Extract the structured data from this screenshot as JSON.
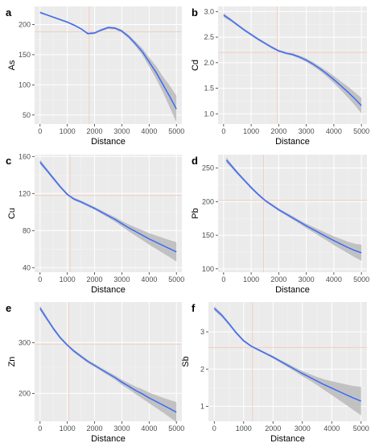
{
  "chart_data": [
    {
      "panel": "a",
      "type": "line",
      "xlabel": "Distance",
      "ylabel": "As",
      "xlim": [
        -200,
        5200
      ],
      "ylim": [
        35,
        230
      ],
      "xticks": [
        0,
        1000,
        2000,
        3000,
        4000,
        5000
      ],
      "yticks": [
        50,
        100,
        150,
        200
      ],
      "ref_x": 1800,
      "ref_y": 188,
      "line_color": "#3366ff",
      "band_color": "#bdbdbd",
      "ref_color": "#f4cfc0",
      "x": [
        0,
        250,
        500,
        750,
        1000,
        1250,
        1500,
        1750,
        2000,
        2250,
        2500,
        2750,
        3000,
        3250,
        3500,
        3750,
        4000,
        4250,
        4500,
        4750,
        5000
      ],
      "y": [
        220,
        216,
        212,
        208,
        204,
        199,
        193,
        185,
        186,
        191,
        195,
        194,
        189,
        180,
        168,
        155,
        138,
        121,
        101,
        81,
        60
      ],
      "lo": [
        218,
        214.5,
        210.5,
        206.5,
        202.5,
        197.5,
        191.5,
        183,
        184,
        189,
        193,
        192,
        186.5,
        177,
        164,
        149.5,
        130.5,
        110.5,
        88,
        63,
        38
      ],
      "hi": [
        222,
        217.5,
        213.5,
        209.5,
        205.5,
        200.5,
        194.5,
        187,
        188,
        193,
        197,
        196,
        191.5,
        183,
        172,
        160.5,
        145.5,
        131.5,
        114,
        99,
        82
      ]
    },
    {
      "panel": "b",
      "type": "line",
      "xlabel": "Distance",
      "ylabel": "Cd",
      "xlim": [
        -200,
        5200
      ],
      "ylim": [
        0.8,
        3.1
      ],
      "xticks": [
        0,
        1000,
        2000,
        3000,
        4000,
        5000
      ],
      "yticks": [
        1.0,
        1.5,
        2.0,
        2.5,
        3.0
      ],
      "ref_x": 1950,
      "ref_y": 2.2,
      "line_color": "#3366ff",
      "band_color": "#bdbdbd",
      "ref_color": "#f4cfc0",
      "x": [
        0,
        250,
        500,
        750,
        1000,
        1250,
        1500,
        1750,
        2000,
        2250,
        2500,
        2750,
        3000,
        3250,
        3500,
        3750,
        4000,
        4250,
        4500,
        4750,
        5000
      ],
      "y": [
        2.93,
        2.84,
        2.74,
        2.64,
        2.55,
        2.46,
        2.38,
        2.3,
        2.23,
        2.19,
        2.16,
        2.11,
        2.05,
        1.97,
        1.88,
        1.78,
        1.67,
        1.55,
        1.43,
        1.3,
        1.16
      ],
      "lo": [
        2.89,
        2.81,
        2.715,
        2.615,
        2.525,
        2.435,
        2.355,
        2.275,
        2.205,
        2.165,
        2.135,
        2.08,
        2.015,
        1.93,
        1.835,
        1.725,
        1.6,
        1.465,
        1.325,
        1.175,
        1.01
      ],
      "hi": [
        2.97,
        2.87,
        2.765,
        2.665,
        2.575,
        2.485,
        2.405,
        2.325,
        2.255,
        2.215,
        2.185,
        2.14,
        2.085,
        2.01,
        1.925,
        1.835,
        1.74,
        1.635,
        1.535,
        1.425,
        1.31
      ]
    },
    {
      "panel": "c",
      "type": "line",
      "xlabel": "Distance",
      "ylabel": "Cu",
      "xlim": [
        -200,
        5200
      ],
      "ylim": [
        35,
        162
      ],
      "xticks": [
        0,
        1000,
        2000,
        3000,
        4000,
        5000
      ],
      "yticks": [
        40,
        80,
        120,
        160
      ],
      "ref_x": 1100,
      "ref_y": 118,
      "line_color": "#3366ff",
      "band_color": "#bdbdbd",
      "ref_color": "#f4cfc0",
      "x": [
        0,
        250,
        500,
        750,
        1000,
        1250,
        1500,
        1750,
        2000,
        2250,
        2500,
        2750,
        3000,
        3250,
        3500,
        3750,
        4000,
        4250,
        4500,
        4750,
        5000
      ],
      "y": [
        154,
        145,
        136,
        127,
        119,
        114,
        111,
        107.5,
        104,
        100,
        96,
        92,
        87.5,
        83,
        79,
        75,
        71,
        67.5,
        64,
        60.5,
        57
      ],
      "lo": [
        151.5,
        143,
        134,
        125.3,
        117.5,
        112.5,
        109.5,
        106,
        102.4,
        98.2,
        93.9,
        89.5,
        84.5,
        79.3,
        74.5,
        69.7,
        64.8,
        60.3,
        55.8,
        51.3,
        46.5
      ],
      "hi": [
        156.5,
        147,
        138,
        128.7,
        120.5,
        115.5,
        112.5,
        109,
        105.6,
        101.8,
        98.1,
        94.5,
        90.5,
        86.7,
        83.5,
        80.3,
        77.2,
        74.7,
        72.2,
        69.7,
        67.5
      ]
    },
    {
      "panel": "d",
      "type": "line",
      "xlabel": "Distance",
      "ylabel": "Pb",
      "xlim": [
        -200,
        5200
      ],
      "ylim": [
        95,
        270
      ],
      "xticks": [
        0,
        1000,
        2000,
        3000,
        4000,
        5000
      ],
      "yticks": [
        100,
        150,
        200,
        250
      ],
      "ref_x": 1450,
      "ref_y": 202,
      "line_color": "#3366ff",
      "band_color": "#bdbdbd",
      "ref_color": "#f4cfc0",
      "x": [
        100,
        250,
        500,
        750,
        1000,
        1250,
        1500,
        1750,
        2000,
        2250,
        2500,
        2750,
        3000,
        3250,
        3500,
        3750,
        4000,
        4250,
        4500,
        4750,
        5000
      ],
      "y": [
        262,
        255,
        243,
        232,
        221,
        211,
        202,
        195,
        188,
        182,
        176,
        170,
        164,
        158.5,
        153,
        147.5,
        142,
        137,
        132,
        127.5,
        124
      ],
      "lo": [
        258,
        252,
        240.5,
        229.7,
        218.8,
        209,
        200,
        193,
        186,
        179.7,
        173.5,
        167.2,
        160.7,
        154.5,
        148.2,
        142,
        135.5,
        129.5,
        123.5,
        117.5,
        112
      ],
      "hi": [
        266,
        258,
        245.5,
        234.3,
        223.2,
        213,
        204,
        197,
        190,
        184.3,
        178.5,
        172.8,
        167.3,
        162.5,
        157.8,
        153,
        148.5,
        144.5,
        140.5,
        137.5,
        136
      ]
    },
    {
      "panel": "e",
      "type": "line",
      "xlabel": "Distance",
      "ylabel": "Zn",
      "xlim": [
        -200,
        5200
      ],
      "ylim": [
        145,
        380
      ],
      "xticks": [
        0,
        1000,
        2000,
        3000,
        4000,
        5000
      ],
      "yticks": [
        200,
        300
      ],
      "ref_x": 1050,
      "ref_y": 297,
      "line_color": "#3366ff",
      "band_color": "#bdbdbd",
      "ref_color": "#f4cfc0",
      "x": [
        0,
        250,
        500,
        750,
        1000,
        1250,
        1500,
        1750,
        2000,
        2250,
        2500,
        2750,
        3000,
        3250,
        3500,
        3750,
        4000,
        4250,
        4500,
        4750,
        5000
      ],
      "y": [
        368,
        347,
        327,
        309,
        295,
        283,
        273,
        263,
        255,
        247,
        239,
        231,
        222,
        214,
        206,
        199,
        191,
        184,
        177,
        170,
        163
      ],
      "lo": [
        363,
        343,
        323.5,
        306,
        292,
        280,
        270,
        260,
        252,
        243.8,
        235.3,
        226.7,
        217,
        208,
        198.6,
        190,
        180.5,
        171.5,
        162.5,
        153,
        143
      ],
      "hi": [
        373,
        351,
        330.5,
        312,
        298,
        286,
        276,
        266,
        258,
        250.2,
        242.7,
        235.3,
        227,
        220,
        213.4,
        208,
        201.5,
        196.5,
        191.5,
        187,
        183
      ]
    },
    {
      "panel": "f",
      "type": "line",
      "xlabel": "Distance",
      "ylabel": "Sb",
      "xlim": [
        -200,
        5200
      ],
      "ylim": [
        0.6,
        3.8
      ],
      "xticks": [
        0,
        1000,
        2000,
        3000,
        4000,
        5000
      ],
      "yticks": [
        1,
        2,
        3
      ],
      "ref_x": 1300,
      "ref_y": 2.58,
      "line_color": "#3366ff",
      "band_color": "#bdbdbd",
      "ref_color": "#f4cfc0",
      "x": [
        0,
        250,
        500,
        750,
        1000,
        1250,
        1500,
        1750,
        2000,
        2250,
        2500,
        2750,
        3000,
        3250,
        3500,
        3750,
        4000,
        4250,
        4500,
        4750,
        5000
      ],
      "y": [
        3.63,
        3.45,
        3.22,
        2.97,
        2.76,
        2.62,
        2.52,
        2.42,
        2.32,
        2.21,
        2.1,
        1.99,
        1.88,
        1.78,
        1.68,
        1.58,
        1.49,
        1.4,
        1.31,
        1.22,
        1.14
      ],
      "lo": [
        3.57,
        3.4,
        3.175,
        2.93,
        2.725,
        2.59,
        2.49,
        2.39,
        2.285,
        2.17,
        2.05,
        1.935,
        1.81,
        1.695,
        1.57,
        1.435,
        1.305,
        1.17,
        1.035,
        0.895,
        0.76
      ],
      "hi": [
        3.69,
        3.5,
        3.265,
        3.01,
        2.795,
        2.65,
        2.55,
        2.45,
        2.355,
        2.25,
        2.15,
        2.045,
        1.95,
        1.865,
        1.79,
        1.725,
        1.675,
        1.63,
        1.585,
        1.545,
        1.52
      ]
    }
  ]
}
